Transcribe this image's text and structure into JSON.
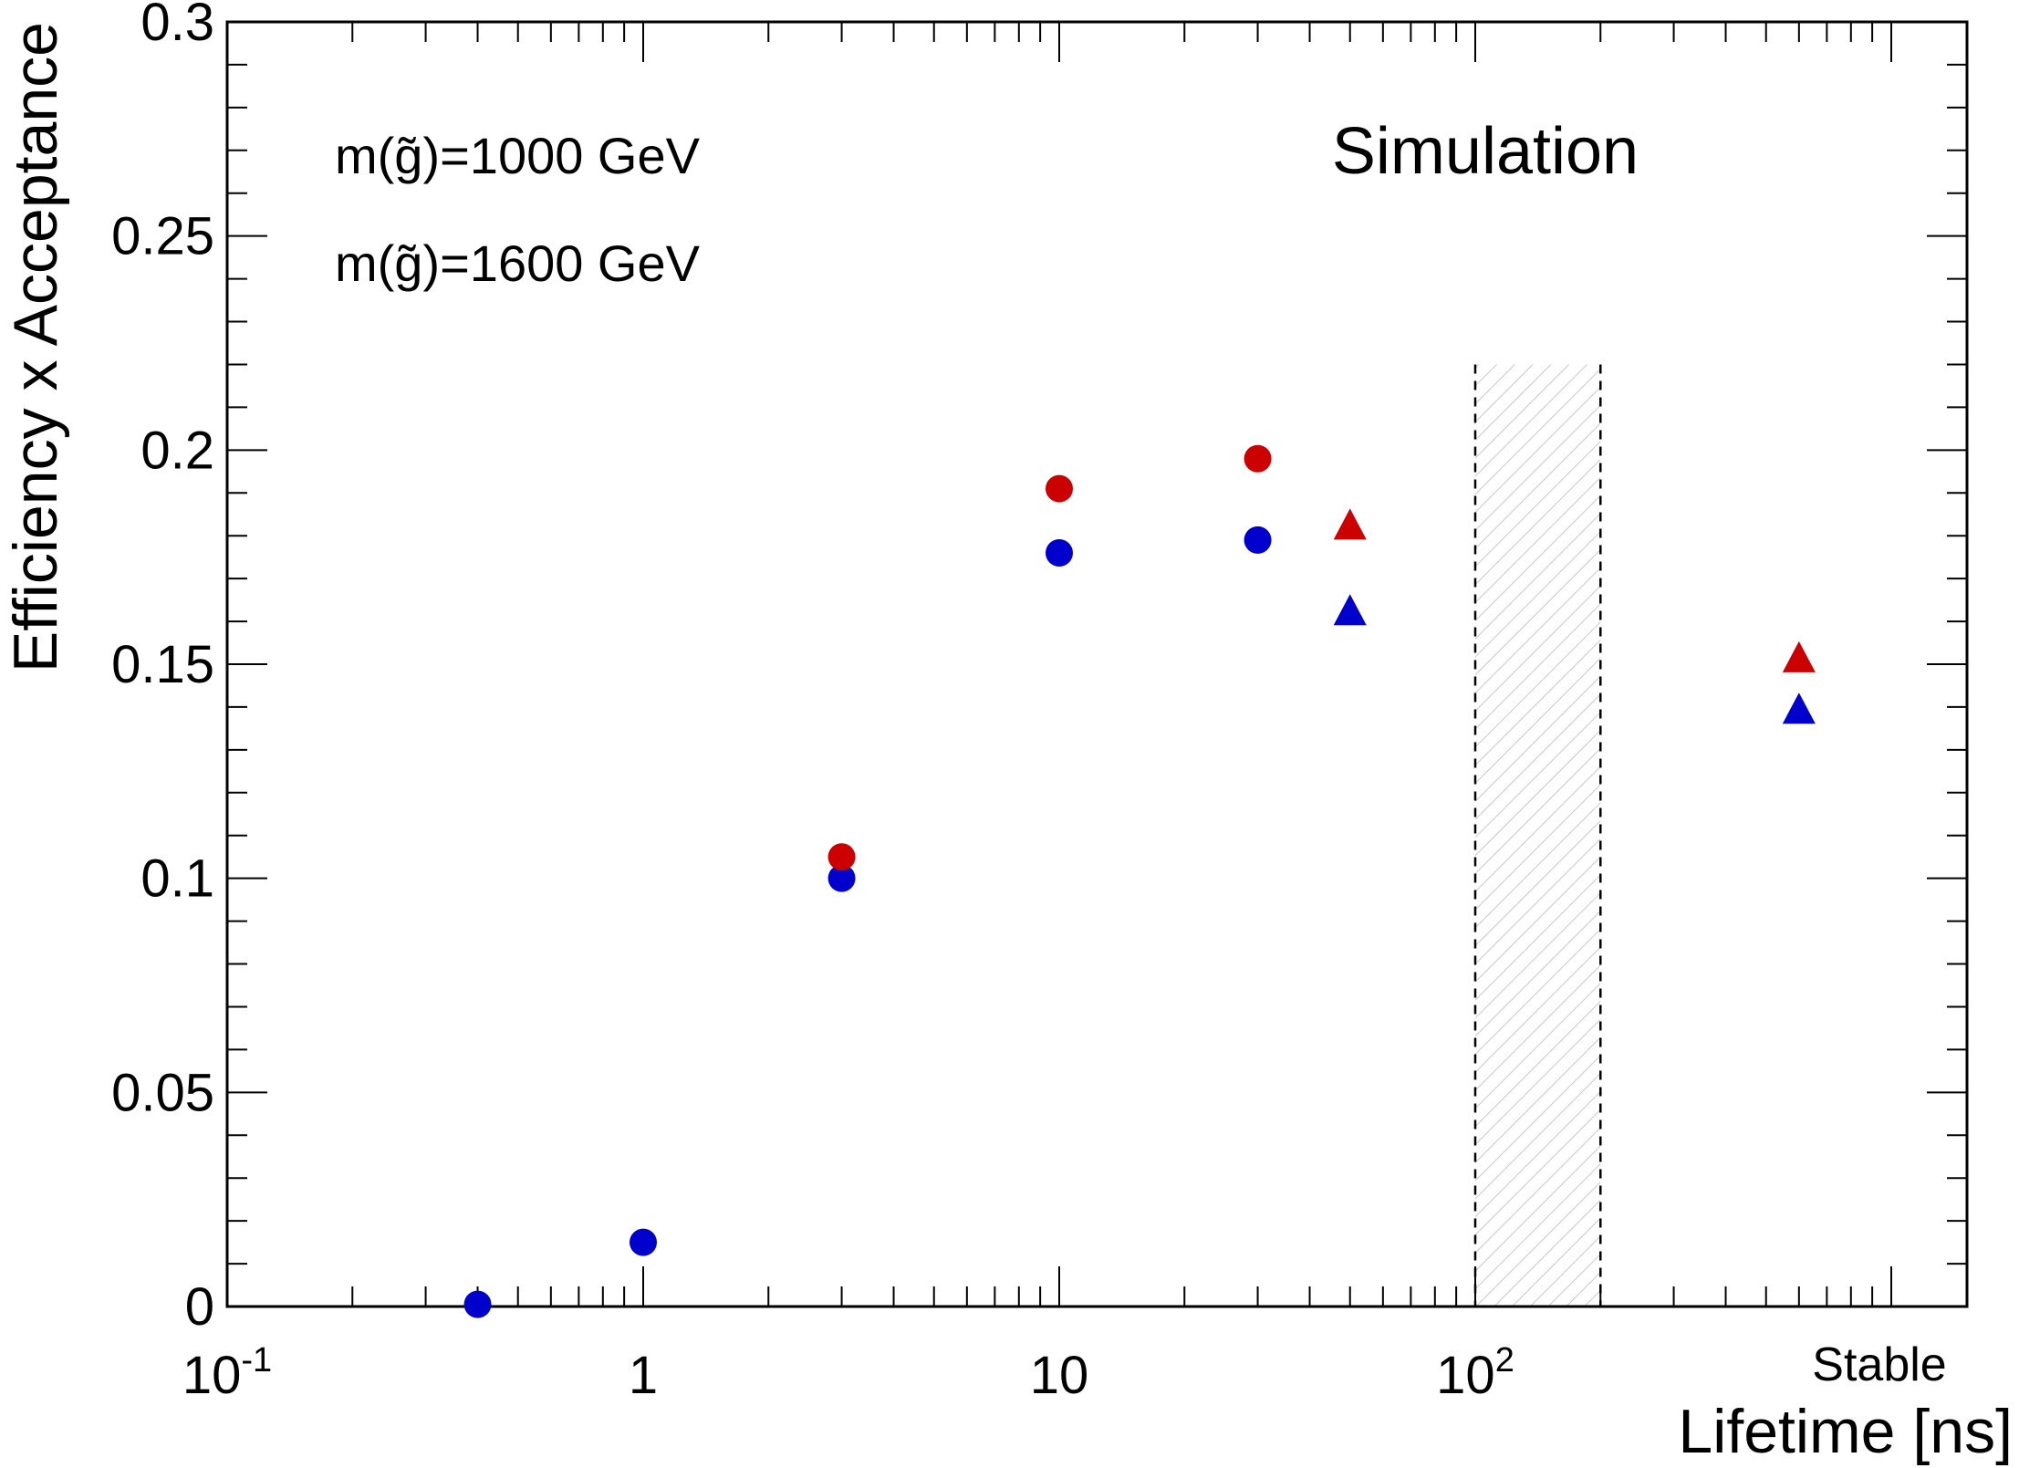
{
  "chart_data": {
    "type": "scatter",
    "title": "",
    "annotation": "Simulation",
    "xlabel": "Lifetime [ns]",
    "ylabel": "Efficiency x Acceptance",
    "xscale": "log",
    "xlim": [
      0.1,
      1000
    ],
    "ylim": [
      0,
      0.3
    ],
    "x_ticks": [
      {
        "value": 0.1,
        "base": "10",
        "exp": "-1"
      },
      {
        "value": 1,
        "base": "1",
        "exp": ""
      },
      {
        "value": 10,
        "base": "10",
        "exp": ""
      },
      {
        "value": 100,
        "base": "10",
        "exp": "2"
      }
    ],
    "stable_label": "Stable",
    "stable_position_ns": 600,
    "y_ticks": [
      {
        "value": 0,
        "label": "0"
      },
      {
        "value": 0.05,
        "label": "0.05"
      },
      {
        "value": 0.1,
        "label": "0.1"
      },
      {
        "value": 0.15,
        "label": "0.15"
      },
      {
        "value": 0.2,
        "label": "0.2"
      },
      {
        "value": 0.25,
        "label": "0.25"
      },
      {
        "value": 0.3,
        "label": "0.3"
      }
    ],
    "excluded_band": {
      "x_min": 100,
      "x_max": 200,
      "y_max": 0.22,
      "style": "hatched"
    },
    "grid": false,
    "legend_position": "top-left",
    "series": [
      {
        "name": "m(g̃)=1000 GeV",
        "color": "#0000cc",
        "points": [
          {
            "x": 0.4,
            "y": 0.0005,
            "marker": "circle"
          },
          {
            "x": 1,
            "y": 0.015,
            "marker": "circle"
          },
          {
            "x": 3,
            "y": 0.1,
            "marker": "circle"
          },
          {
            "x": 10,
            "y": 0.176,
            "marker": "circle"
          },
          {
            "x": 30,
            "y": 0.179,
            "marker": "circle"
          },
          {
            "x": 50,
            "y": 0.162,
            "marker": "triangle"
          },
          {
            "x": "Stable",
            "y": 0.139,
            "marker": "triangle"
          }
        ]
      },
      {
        "name": "m(g̃)=1600 GeV",
        "color": "#cc0000",
        "points": [
          {
            "x": 3,
            "y": 0.105,
            "marker": "circle"
          },
          {
            "x": 10,
            "y": 0.191,
            "marker": "circle"
          },
          {
            "x": 30,
            "y": 0.198,
            "marker": "circle"
          },
          {
            "x": 50,
            "y": 0.182,
            "marker": "triangle"
          },
          {
            "x": "Stable",
            "y": 0.151,
            "marker": "triangle"
          }
        ]
      }
    ]
  }
}
